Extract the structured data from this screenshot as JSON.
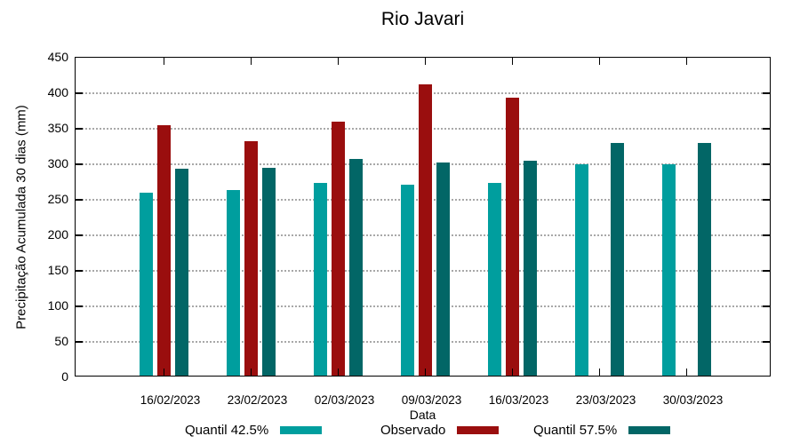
{
  "chart_data": {
    "type": "bar",
    "title": "Rio Javari",
    "xlabel": "Data",
    "ylabel": "Precipitação Acumulada 30 dias (mm)",
    "categories": [
      "16/02/2023",
      "23/02/2023",
      "02/03/2023",
      "09/03/2023",
      "16/03/2023",
      "23/03/2023",
      "30/03/2023"
    ],
    "series": [
      {
        "name": "Quantil 42.5%",
        "color": "#009E9E",
        "values": [
          258,
          261,
          271,
          269,
          271,
          297,
          297
        ]
      },
      {
        "name": "Observado",
        "color": "#9A0E0E",
        "values": [
          352,
          330,
          358,
          410,
          391,
          null,
          null
        ]
      },
      {
        "name": "Quantil 57.5%",
        "color": "#026666",
        "values": [
          291,
          292,
          305,
          300,
          303,
          327,
          327
        ]
      }
    ],
    "ylim": [
      0,
      450
    ],
    "ytick_step": 50,
    "grid": "horizontal-dotted",
    "legend_position": "bottom",
    "axis_color": "#000000",
    "grid_color": "#a8a8a8"
  }
}
